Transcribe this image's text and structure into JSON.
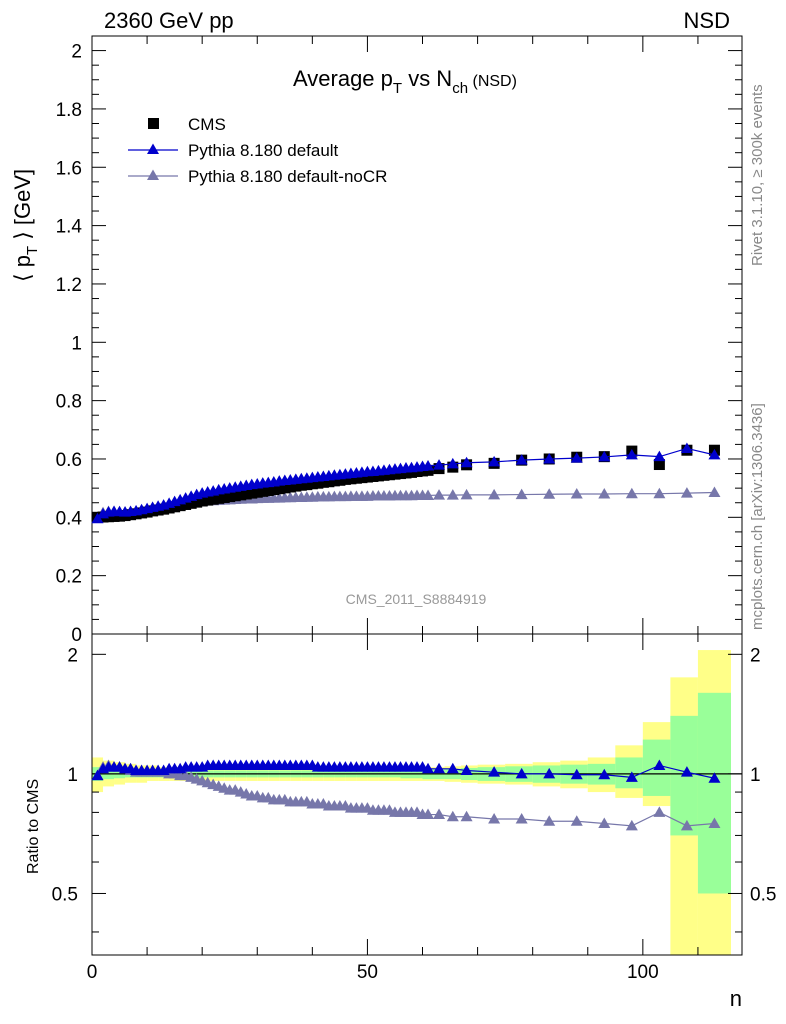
{
  "header": {
    "left": "2360 GeV pp",
    "right": "NSD"
  },
  "side_text": {
    "rivet": "Rivet 3.1.10, ≥ 300k events",
    "mcplots": "mcplots.cern.ch [arXiv:1306.3436]"
  },
  "chart_data": {
    "type": "scatter",
    "title_parts": {
      "a": "Average p",
      "a_sub": "T",
      "b": " vs N",
      "b_sub": "ch",
      "c": " (NSD)"
    },
    "ylabel_parts": {
      "a": "⟨ p",
      "a_sub": "T",
      "b": " ⟩ [GeV]"
    },
    "ratio_ylabel": "Ratio to CMS",
    "xlabel": "n",
    "analysis_tag": "CMS_2011_S8884919",
    "xlim": [
      0,
      118
    ],
    "ylim": [
      0,
      2.05
    ],
    "ratio_ylim": [
      0.35,
      2.25
    ],
    "x_ticks": [
      0,
      50,
      100
    ],
    "y_ticks": [
      0,
      0.2,
      0.4,
      0.6,
      0.8,
      1,
      1.2,
      1.4,
      1.6,
      1.8,
      2
    ],
    "y_tick_labels": [
      "0",
      "0.2",
      "0.4",
      "0.6",
      "0.8",
      "1",
      "1.2",
      "1.4",
      "1.6",
      "1.8",
      "2"
    ],
    "ratio_ticks": [
      0.5,
      1,
      2
    ],
    "ratio_tick_labels": [
      "0.5",
      "1",
      "2"
    ],
    "legend": [
      {
        "name": "CMS",
        "marker": "square",
        "color": "#000000"
      },
      {
        "name": "Pythia 8.180 default",
        "marker": "triangle",
        "color": "#0000cc"
      },
      {
        "name": "Pythia 8.180 default-noCR",
        "marker": "triangle",
        "color": "#7777aa"
      }
    ],
    "x": [
      1,
      2,
      3,
      4,
      5,
      6,
      7,
      8,
      9,
      10,
      11,
      12,
      13,
      14,
      15,
      16,
      17,
      18,
      19,
      20,
      21,
      22,
      23,
      24,
      25,
      26,
      27,
      28,
      29,
      30,
      31,
      32,
      33,
      34,
      35,
      36,
      37,
      38,
      39,
      40,
      41,
      42,
      43,
      44,
      45,
      46,
      47,
      48,
      49,
      50,
      51,
      52,
      53,
      54,
      55,
      56,
      57,
      58,
      59,
      60,
      61,
      63,
      65.5,
      68,
      73,
      78,
      83,
      88,
      93,
      98,
      103,
      108,
      113
    ],
    "cms": [
      0.4,
      0.401,
      0.402,
      0.403,
      0.404,
      0.406,
      0.409,
      0.412,
      0.415,
      0.418,
      0.422,
      0.425,
      0.428,
      0.432,
      0.436,
      0.44,
      0.444,
      0.448,
      0.452,
      0.456,
      0.459,
      0.462,
      0.465,
      0.468,
      0.471,
      0.474,
      0.477,
      0.48,
      0.483,
      0.486,
      0.489,
      0.492,
      0.495,
      0.498,
      0.501,
      0.504,
      0.507,
      0.51,
      0.512,
      0.515,
      0.517,
      0.52,
      0.522,
      0.525,
      0.527,
      0.53,
      0.532,
      0.534,
      0.536,
      0.538,
      0.54,
      0.542,
      0.544,
      0.546,
      0.548,
      0.55,
      0.552,
      0.554,
      0.557,
      0.559,
      0.561,
      0.567,
      0.572,
      0.58,
      0.585,
      0.596,
      0.6,
      0.606,
      0.608,
      0.627,
      0.581,
      0.63,
      0.63
    ],
    "pythia_default": [
      0.395,
      0.412,
      0.418,
      0.42,
      0.419,
      0.418,
      0.42,
      0.422,
      0.426,
      0.43,
      0.434,
      0.438,
      0.442,
      0.448,
      0.454,
      0.46,
      0.466,
      0.472,
      0.478,
      0.483,
      0.487,
      0.49,
      0.494,
      0.497,
      0.5,
      0.503,
      0.506,
      0.509,
      0.512,
      0.514,
      0.517,
      0.519,
      0.521,
      0.524,
      0.526,
      0.528,
      0.53,
      0.532,
      0.534,
      0.536,
      0.538,
      0.54,
      0.542,
      0.544,
      0.546,
      0.548,
      0.55,
      0.552,
      0.554,
      0.556,
      0.557,
      0.559,
      0.561,
      0.563,
      0.565,
      0.567,
      0.569,
      0.57,
      0.572,
      0.574,
      0.576,
      0.579,
      0.583,
      0.587,
      0.59,
      0.596,
      0.6,
      0.603,
      0.607,
      0.614,
      0.608,
      0.636,
      0.614
    ],
    "pythia_nocr": [
      0.398,
      0.416,
      0.42,
      0.42,
      0.419,
      0.418,
      0.418,
      0.419,
      0.421,
      0.424,
      0.427,
      0.431,
      0.434,
      0.438,
      0.441,
      0.444,
      0.447,
      0.45,
      0.452,
      0.454,
      0.456,
      0.457,
      0.458,
      0.459,
      0.46,
      0.461,
      0.462,
      0.463,
      0.463,
      0.464,
      0.465,
      0.465,
      0.466,
      0.466,
      0.467,
      0.467,
      0.468,
      0.468,
      0.469,
      0.469,
      0.47,
      0.47,
      0.47,
      0.471,
      0.471,
      0.471,
      0.472,
      0.472,
      0.472,
      0.472,
      0.473,
      0.473,
      0.473,
      0.473,
      0.474,
      0.474,
      0.474,
      0.474,
      0.475,
      0.475,
      0.475,
      0.476,
      0.476,
      0.477,
      0.477,
      0.478,
      0.479,
      0.48,
      0.48,
      0.481,
      0.481,
      0.483,
      0.485
    ],
    "ratio_default": [
      0.99,
      1.03,
      1.04,
      1.04,
      1.04,
      1.03,
      1.03,
      1.02,
      1.02,
      1.02,
      1.02,
      1.02,
      1.02,
      1.03,
      1.03,
      1.03,
      1.04,
      1.04,
      1.04,
      1.04,
      1.05,
      1.05,
      1.05,
      1.05,
      1.05,
      1.05,
      1.05,
      1.05,
      1.05,
      1.05,
      1.05,
      1.05,
      1.05,
      1.05,
      1.05,
      1.05,
      1.05,
      1.05,
      1.05,
      1.05,
      1.04,
      1.04,
      1.04,
      1.04,
      1.04,
      1.04,
      1.04,
      1.04,
      1.04,
      1.04,
      1.04,
      1.04,
      1.04,
      1.04,
      1.04,
      1.04,
      1.04,
      1.04,
      1.04,
      1.04,
      1.03,
      1.03,
      1.03,
      1.02,
      1.01,
      1.0,
      1.0,
      0.995,
      0.995,
      0.98,
      1.05,
      1.01,
      0.975
    ],
    "ratio_nocr": [
      0.99,
      1.04,
      1.05,
      1.04,
      1.04,
      1.03,
      1.02,
      1.01,
      1.01,
      1.01,
      1.01,
      1.01,
      1.01,
      1.0,
      1.0,
      0.99,
      0.99,
      0.98,
      0.97,
      0.96,
      0.95,
      0.94,
      0.93,
      0.92,
      0.91,
      0.91,
      0.9,
      0.89,
      0.88,
      0.88,
      0.87,
      0.87,
      0.86,
      0.86,
      0.86,
      0.85,
      0.85,
      0.85,
      0.85,
      0.84,
      0.84,
      0.84,
      0.83,
      0.83,
      0.83,
      0.83,
      0.82,
      0.82,
      0.82,
      0.82,
      0.81,
      0.81,
      0.81,
      0.81,
      0.8,
      0.8,
      0.8,
      0.8,
      0.8,
      0.79,
      0.79,
      0.79,
      0.78,
      0.78,
      0.77,
      0.77,
      0.76,
      0.76,
      0.75,
      0.74,
      0.8,
      0.74,
      0.75
    ],
    "x_edges": [
      0,
      2,
      4,
      6,
      8,
      10,
      12,
      14,
      16,
      18,
      20,
      22,
      24,
      26,
      28,
      30,
      32,
      34,
      36,
      38,
      40,
      42,
      44,
      46,
      48,
      50,
      52,
      54,
      56,
      58,
      60,
      62,
      64,
      67,
      70,
      75,
      80,
      85,
      90,
      95,
      100,
      105,
      110,
      116
    ],
    "band_yellow": [
      [
        0.9,
        1.1
      ],
      [
        0.93,
        1.08
      ],
      [
        0.94,
        1.07
      ],
      [
        0.95,
        1.06
      ],
      [
        0.95,
        1.05
      ],
      [
        0.96,
        1.05
      ],
      [
        0.96,
        1.04
      ],
      [
        0.96,
        1.04
      ],
      [
        0.96,
        1.04
      ],
      [
        0.96,
        1.04
      ],
      [
        0.96,
        1.04
      ],
      [
        0.96,
        1.04
      ],
      [
        0.96,
        1.04
      ],
      [
        0.96,
        1.04
      ],
      [
        0.96,
        1.04
      ],
      [
        0.96,
        1.04
      ],
      [
        0.96,
        1.04
      ],
      [
        0.96,
        1.04
      ],
      [
        0.96,
        1.04
      ],
      [
        0.96,
        1.04
      ],
      [
        0.96,
        1.04
      ],
      [
        0.96,
        1.04
      ],
      [
        0.96,
        1.04
      ],
      [
        0.96,
        1.04
      ],
      [
        0.96,
        1.04
      ],
      [
        0.96,
        1.04
      ],
      [
        0.96,
        1.04
      ],
      [
        0.96,
        1.04
      ],
      [
        0.96,
        1.04
      ],
      [
        0.96,
        1.04
      ],
      [
        0.96,
        1.04
      ],
      [
        0.96,
        1.04
      ],
      [
        0.955,
        1.045
      ],
      [
        0.95,
        1.05
      ],
      [
        0.945,
        1.055
      ],
      [
        0.94,
        1.06
      ],
      [
        0.93,
        1.07
      ],
      [
        0.92,
        1.08
      ],
      [
        0.9,
        1.1
      ],
      [
        0.87,
        1.18
      ],
      [
        0.83,
        1.35
      ],
      [
        0.3,
        1.75
      ],
      [
        0.3,
        2.05
      ]
    ],
    "band_green": [
      [
        0.96,
        1.04
      ],
      [
        0.97,
        1.03
      ],
      [
        0.975,
        1.025
      ],
      [
        0.98,
        1.02
      ],
      [
        0.98,
        1.02
      ],
      [
        0.98,
        1.02
      ],
      [
        0.98,
        1.02
      ],
      [
        0.98,
        1.02
      ],
      [
        0.98,
        1.02
      ],
      [
        0.98,
        1.02
      ],
      [
        0.98,
        1.02
      ],
      [
        0.98,
        1.02
      ],
      [
        0.98,
        1.02
      ],
      [
        0.98,
        1.02
      ],
      [
        0.98,
        1.02
      ],
      [
        0.98,
        1.02
      ],
      [
        0.98,
        1.02
      ],
      [
        0.98,
        1.02
      ],
      [
        0.98,
        1.02
      ],
      [
        0.98,
        1.02
      ],
      [
        0.98,
        1.02
      ],
      [
        0.98,
        1.02
      ],
      [
        0.98,
        1.02
      ],
      [
        0.98,
        1.02
      ],
      [
        0.98,
        1.02
      ],
      [
        0.98,
        1.02
      ],
      [
        0.98,
        1.02
      ],
      [
        0.98,
        1.02
      ],
      [
        0.975,
        1.025
      ],
      [
        0.975,
        1.025
      ],
      [
        0.97,
        1.03
      ],
      [
        0.97,
        1.03
      ],
      [
        0.97,
        1.03
      ],
      [
        0.965,
        1.035
      ],
      [
        0.96,
        1.04
      ],
      [
        0.955,
        1.045
      ],
      [
        0.95,
        1.05
      ],
      [
        0.945,
        1.055
      ],
      [
        0.94,
        1.06
      ],
      [
        0.92,
        1.1
      ],
      [
        0.88,
        1.22
      ],
      [
        0.7,
        1.4
      ],
      [
        0.5,
        1.6
      ]
    ],
    "colors": {
      "cms": "#000000",
      "default": "#0000cc",
      "nocr": "#7777aa",
      "yellow": "#ffff88",
      "green": "#99ff99"
    }
  }
}
